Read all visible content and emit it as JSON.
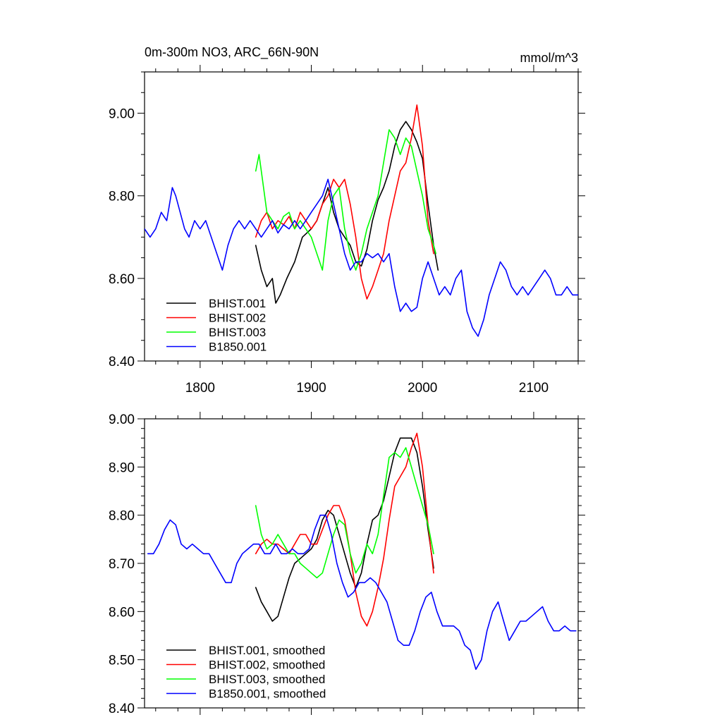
{
  "chart_data": [
    {
      "type": "line",
      "title": "0m-300m NO3, ARC_66N-90N",
      "units": "mmol/m^3",
      "xlim": [
        1750,
        2140
      ],
      "ylim": [
        8.4,
        9.1
      ],
      "xticks": [
        1800,
        1900,
        2000,
        2100
      ],
      "xtick_labels": [
        "1800",
        "1900",
        "2000",
        "2100"
      ],
      "yticks": [
        8.4,
        8.6,
        8.8,
        9.0
      ],
      "ytick_labels": [
        "8.40",
        "8.60",
        "8.80",
        "9.00"
      ],
      "legend_position": "lower-left",
      "series": [
        {
          "name": "BHIST.001",
          "color": "#000000",
          "x": [
            1850,
            1855,
            1860,
            1865,
            1868,
            1872,
            1878,
            1885,
            1892,
            1900,
            1905,
            1910,
            1915,
            1920,
            1925,
            1930,
            1935,
            1940,
            1945,
            1950,
            1955,
            1960,
            1965,
            1970,
            1975,
            1980,
            1985,
            1990,
            1995,
            2000,
            2005,
            2010,
            2014
          ],
          "y": [
            8.68,
            8.62,
            8.58,
            8.6,
            8.54,
            8.56,
            8.6,
            8.64,
            8.7,
            8.72,
            8.74,
            8.78,
            8.82,
            8.76,
            8.72,
            8.7,
            8.68,
            8.64,
            8.63,
            8.67,
            8.74,
            8.79,
            8.82,
            8.86,
            8.92,
            8.96,
            8.98,
            8.96,
            8.93,
            8.89,
            8.78,
            8.68,
            8.62
          ]
        },
        {
          "name": "BHIST.002",
          "color": "#ff0000",
          "x": [
            1850,
            1855,
            1860,
            1865,
            1870,
            1875,
            1880,
            1885,
            1890,
            1895,
            1900,
            1905,
            1910,
            1915,
            1920,
            1925,
            1930,
            1935,
            1940,
            1945,
            1950,
            1955,
            1960,
            1965,
            1970,
            1975,
            1980,
            1985,
            1990,
            1995,
            2000,
            2005,
            2010
          ],
          "y": [
            8.7,
            8.74,
            8.76,
            8.72,
            8.74,
            8.73,
            8.75,
            8.72,
            8.76,
            8.74,
            8.72,
            8.74,
            8.78,
            8.8,
            8.84,
            8.82,
            8.84,
            8.78,
            8.7,
            8.6,
            8.55,
            8.58,
            8.62,
            8.66,
            8.74,
            8.8,
            8.86,
            8.88,
            8.94,
            9.02,
            8.92,
            8.74,
            8.66
          ]
        },
        {
          "name": "BHIST.003",
          "color": "#00ff00",
          "x": [
            1850,
            1853,
            1856,
            1860,
            1865,
            1870,
            1875,
            1880,
            1885,
            1890,
            1895,
            1900,
            1905,
            1910,
            1915,
            1920,
            1925,
            1930,
            1935,
            1940,
            1945,
            1950,
            1955,
            1960,
            1965,
            1970,
            1975,
            1980,
            1985,
            1990,
            1995,
            2000,
            2005,
            2010,
            2012
          ],
          "y": [
            8.86,
            8.9,
            8.84,
            8.76,
            8.74,
            8.72,
            8.75,
            8.76,
            8.72,
            8.74,
            8.72,
            8.7,
            8.66,
            8.62,
            8.74,
            8.8,
            8.82,
            8.72,
            8.66,
            8.62,
            8.66,
            8.72,
            8.76,
            8.8,
            8.88,
            8.96,
            8.94,
            8.9,
            8.94,
            8.92,
            8.86,
            8.8,
            8.72,
            8.68,
            8.66
          ]
        },
        {
          "name": "B1850.001",
          "color": "#0000ff",
          "x": [
            1750,
            1755,
            1760,
            1765,
            1770,
            1775,
            1778,
            1782,
            1786,
            1790,
            1795,
            1800,
            1805,
            1810,
            1815,
            1820,
            1825,
            1830,
            1835,
            1840,
            1845,
            1850,
            1855,
            1860,
            1865,
            1870,
            1875,
            1880,
            1885,
            1890,
            1895,
            1900,
            1905,
            1910,
            1915,
            1920,
            1925,
            1930,
            1935,
            1940,
            1945,
            1950,
            1955,
            1960,
            1965,
            1970,
            1975,
            1980,
            1985,
            1990,
            1995,
            2000,
            2005,
            2010,
            2015,
            2020,
            2025,
            2030,
            2035,
            2040,
            2045,
            2050,
            2055,
            2060,
            2065,
            2070,
            2075,
            2080,
            2085,
            2090,
            2095,
            2100,
            2105,
            2110,
            2115,
            2120,
            2125,
            2130,
            2135,
            2140
          ],
          "y": [
            8.72,
            8.7,
            8.72,
            8.76,
            8.74,
            8.82,
            8.8,
            8.76,
            8.72,
            8.7,
            8.74,
            8.72,
            8.74,
            8.7,
            8.66,
            8.62,
            8.68,
            8.72,
            8.74,
            8.72,
            8.74,
            8.72,
            8.7,
            8.72,
            8.74,
            8.71,
            8.73,
            8.72,
            8.74,
            8.72,
            8.74,
            8.76,
            8.78,
            8.8,
            8.84,
            8.78,
            8.72,
            8.66,
            8.62,
            8.64,
            8.64,
            8.66,
            8.65,
            8.66,
            8.64,
            8.66,
            8.58,
            8.52,
            8.54,
            8.52,
            8.53,
            8.6,
            8.64,
            8.6,
            8.56,
            8.58,
            8.56,
            8.6,
            8.62,
            8.52,
            8.48,
            8.46,
            8.5,
            8.56,
            8.6,
            8.64,
            8.62,
            8.58,
            8.56,
            8.58,
            8.56,
            8.58,
            8.6,
            8.62,
            8.6,
            8.56,
            8.56,
            8.58,
            8.56,
            8.56
          ]
        }
      ]
    },
    {
      "type": "line",
      "xlim": [
        1750,
        2140
      ],
      "ylim": [
        8.4,
        9.0
      ],
      "xticks": [
        1800,
        1900,
        2000,
        2100
      ],
      "yticks": [
        8.4,
        8.5,
        8.6,
        8.7,
        8.8,
        8.9,
        9.0
      ],
      "ytick_labels": [
        "8.40",
        "8.50",
        "8.60",
        "8.70",
        "8.80",
        "8.90",
        "9.00"
      ],
      "legend_position": "lower-left",
      "series": [
        {
          "name": "BHIST.001, smoothed",
          "color": "#000000",
          "x": [
            1850,
            1855,
            1860,
            1865,
            1870,
            1875,
            1880,
            1885,
            1890,
            1895,
            1900,
            1905,
            1910,
            1915,
            1920,
            1925,
            1930,
            1935,
            1940,
            1945,
            1950,
            1955,
            1960,
            1965,
            1970,
            1975,
            1980,
            1985,
            1990,
            1995,
            2000,
            2005,
            2010
          ],
          "y": [
            8.65,
            8.62,
            8.6,
            8.58,
            8.59,
            8.63,
            8.67,
            8.7,
            8.71,
            8.72,
            8.73,
            8.75,
            8.79,
            8.81,
            8.8,
            8.76,
            8.72,
            8.68,
            8.65,
            8.68,
            8.74,
            8.79,
            8.8,
            8.83,
            8.88,
            8.93,
            8.96,
            8.96,
            8.96,
            8.93,
            8.86,
            8.77,
            8.69
          ]
        },
        {
          "name": "BHIST.002, smoothed",
          "color": "#ff0000",
          "x": [
            1850,
            1855,
            1860,
            1865,
            1870,
            1875,
            1880,
            1885,
            1890,
            1895,
            1900,
            1905,
            1910,
            1915,
            1920,
            1925,
            1930,
            1935,
            1940,
            1945,
            1950,
            1955,
            1960,
            1965,
            1970,
            1975,
            1980,
            1985,
            1990,
            1995,
            2000,
            2005,
            2010
          ],
          "y": [
            8.72,
            8.74,
            8.75,
            8.74,
            8.74,
            8.73,
            8.72,
            8.74,
            8.76,
            8.76,
            8.74,
            8.74,
            8.77,
            8.8,
            8.82,
            8.82,
            8.79,
            8.72,
            8.64,
            8.59,
            8.57,
            8.6,
            8.65,
            8.71,
            8.79,
            8.86,
            8.88,
            8.9,
            8.94,
            8.97,
            8.9,
            8.78,
            8.68
          ]
        },
        {
          "name": "BHIST.003, smoothed",
          "color": "#00ff00",
          "x": [
            1850,
            1855,
            1860,
            1865,
            1870,
            1875,
            1880,
            1885,
            1890,
            1895,
            1900,
            1905,
            1910,
            1915,
            1920,
            1925,
            1930,
            1935,
            1940,
            1945,
            1950,
            1955,
            1960,
            1965,
            1970,
            1975,
            1980,
            1985,
            1990,
            1995,
            2000,
            2005,
            2010
          ],
          "y": [
            8.82,
            8.76,
            8.73,
            8.74,
            8.76,
            8.74,
            8.72,
            8.72,
            8.7,
            8.69,
            8.68,
            8.67,
            8.68,
            8.72,
            8.76,
            8.79,
            8.78,
            8.72,
            8.68,
            8.7,
            8.74,
            8.72,
            8.76,
            8.84,
            8.92,
            8.93,
            8.92,
            8.94,
            8.9,
            8.86,
            8.82,
            8.78,
            8.72
          ]
        },
        {
          "name": "B1850.001, smoothed",
          "color": "#0000ff",
          "x": [
            1753,
            1758,
            1763,
            1768,
            1773,
            1778,
            1783,
            1788,
            1793,
            1798,
            1803,
            1808,
            1813,
            1818,
            1823,
            1828,
            1833,
            1838,
            1843,
            1848,
            1853,
            1858,
            1863,
            1868,
            1873,
            1878,
            1883,
            1888,
            1893,
            1898,
            1903,
            1908,
            1913,
            1918,
            1923,
            1928,
            1933,
            1938,
            1943,
            1948,
            1953,
            1958,
            1963,
            1968,
            1973,
            1978,
            1983,
            1988,
            1993,
            1998,
            2003,
            2008,
            2013,
            2018,
            2023,
            2028,
            2033,
            2038,
            2043,
            2048,
            2053,
            2058,
            2063,
            2068,
            2073,
            2078,
            2083,
            2088,
            2093,
            2098,
            2103,
            2108,
            2113,
            2118,
            2123,
            2128,
            2133,
            2138
          ],
          "y": [
            8.72,
            8.72,
            8.74,
            8.77,
            8.79,
            8.78,
            8.74,
            8.73,
            8.74,
            8.73,
            8.72,
            8.72,
            8.7,
            8.68,
            8.66,
            8.66,
            8.7,
            8.72,
            8.73,
            8.74,
            8.74,
            8.72,
            8.72,
            8.74,
            8.72,
            8.72,
            8.73,
            8.72,
            8.72,
            8.73,
            8.77,
            8.8,
            8.8,
            8.76,
            8.7,
            8.66,
            8.63,
            8.64,
            8.66,
            8.66,
            8.67,
            8.66,
            8.64,
            8.62,
            8.58,
            8.54,
            8.53,
            8.53,
            8.56,
            8.6,
            8.63,
            8.64,
            8.6,
            8.57,
            8.57,
            8.57,
            8.56,
            8.53,
            8.52,
            8.48,
            8.5,
            8.56,
            8.6,
            8.62,
            8.58,
            8.54,
            8.56,
            8.58,
            8.58,
            8.59,
            8.6,
            8.61,
            8.58,
            8.56,
            8.56,
            8.57,
            8.56,
            8.56
          ]
        }
      ]
    }
  ]
}
